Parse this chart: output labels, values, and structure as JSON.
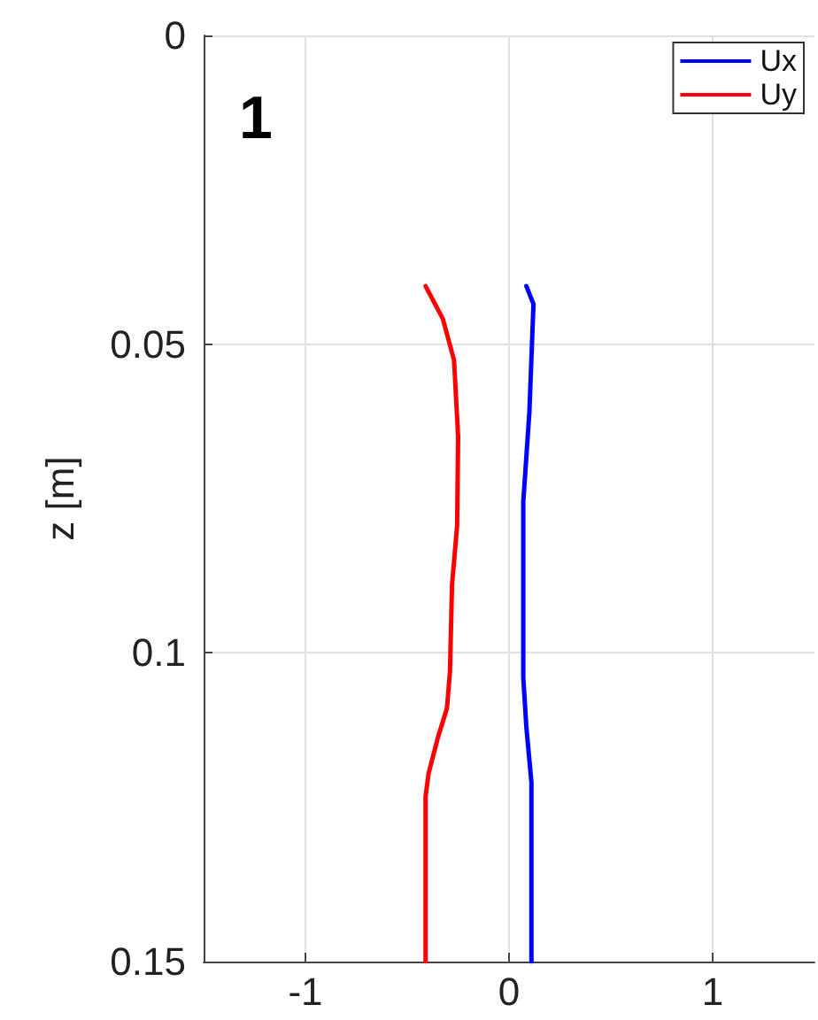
{
  "chart_data": {
    "type": "line",
    "ylabel": "z [m]",
    "annotations": [
      "1"
    ],
    "xlim": [
      -1.5,
      1.5
    ],
    "xticks": [
      -1,
      0,
      1
    ],
    "ylim": [
      0.15,
      0
    ],
    "yticks": [
      0,
      0.05,
      0.1,
      0.15
    ],
    "grid": true,
    "legend": "top right",
    "marker": "none",
    "line_style": "solid",
    "series": [
      {
        "name": "Ux",
        "color": "#0000ff",
        "x": [
          0.085,
          0.12,
          0.1,
          0.07,
          0.07,
          0.085,
          0.11,
          0.11
        ],
        "values": [
          0.0406,
          0.0435,
          0.061,
          0.0755,
          0.104,
          0.112,
          0.121,
          0.15
        ]
      },
      {
        "name": "Uy",
        "color": "#ff0000",
        "x": [
          -0.41,
          -0.325,
          -0.27,
          -0.25,
          -0.255,
          -0.28,
          -0.29,
          -0.305,
          -0.35,
          -0.395,
          -0.41,
          -0.41
        ],
        "values": [
          0.0406,
          0.0459,
          0.0526,
          0.065,
          0.0794,
          0.089,
          0.103,
          0.109,
          0.1138,
          0.1195,
          0.1233,
          0.15
        ]
      }
    ]
  }
}
